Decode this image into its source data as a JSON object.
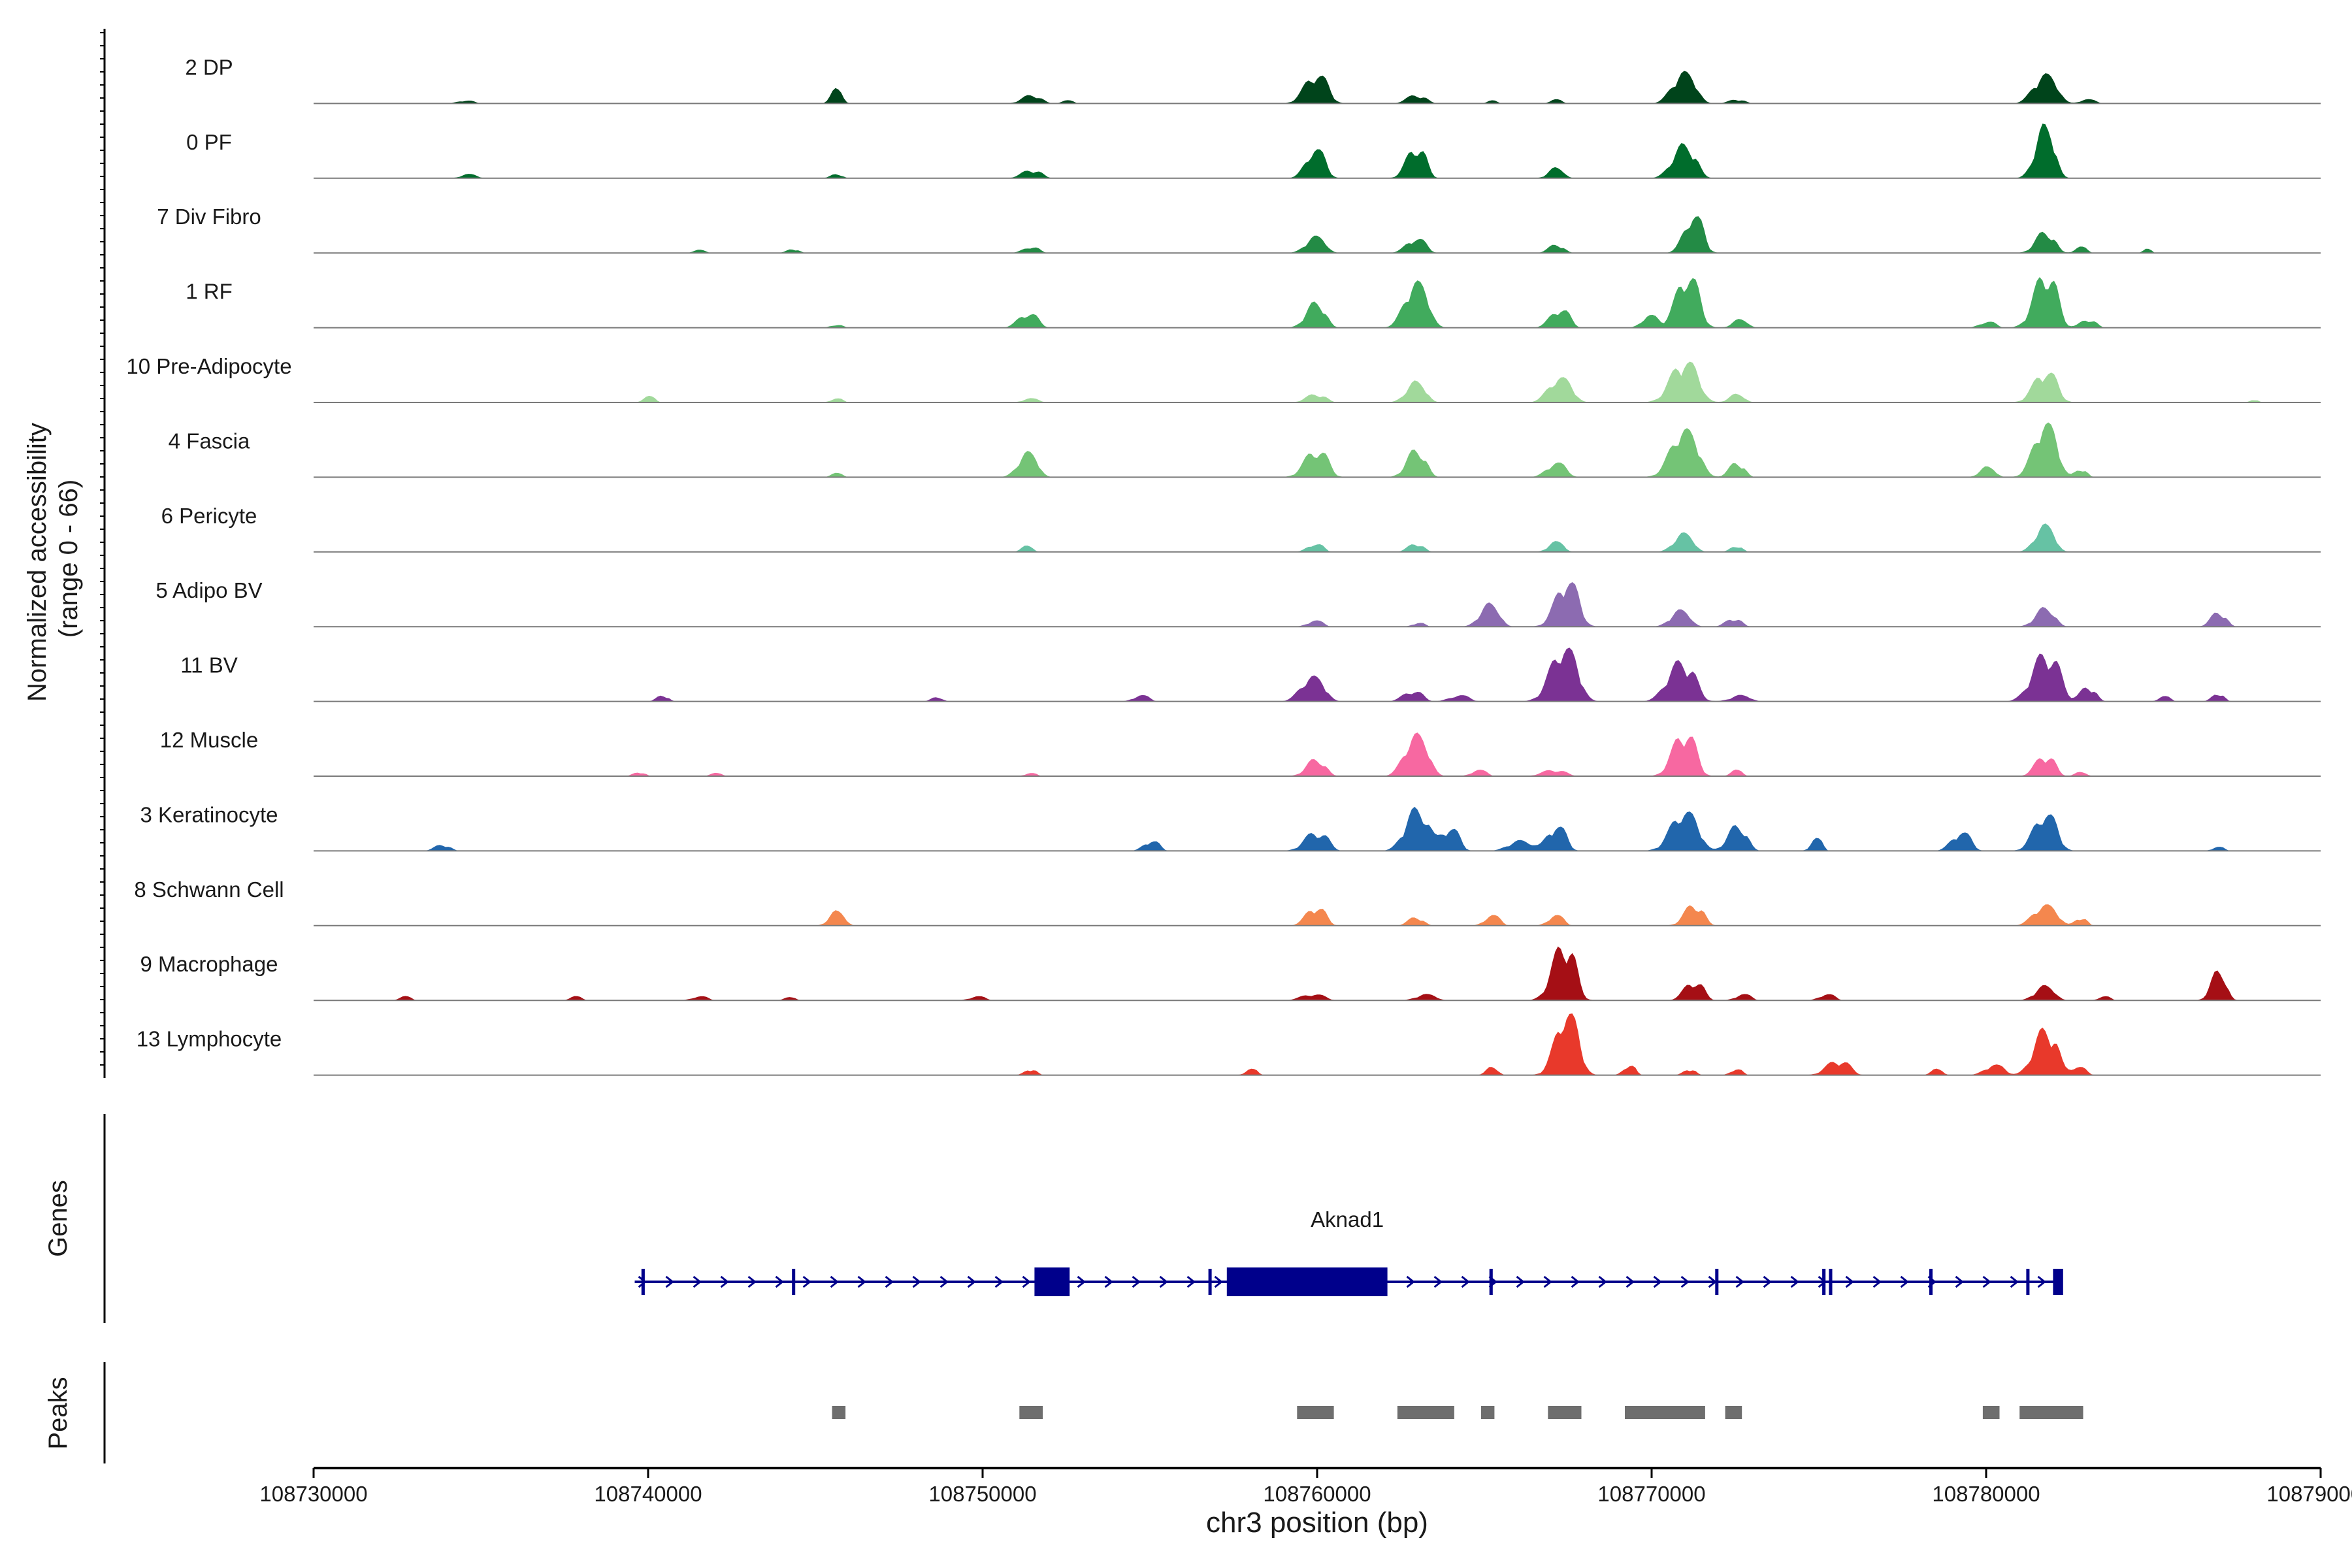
{
  "chart_data": {
    "type": "area",
    "title": "",
    "y_axis_label_line1": "Normalized accessibility",
    "y_axis_label_line2": "(range 0 - 66)",
    "y_range": [
      0,
      66
    ],
    "xlabel": "chr3 position (bp)",
    "xlim": [
      108730000,
      108790000
    ],
    "x_ticks": [
      "108730000",
      "108740000",
      "108750000",
      "108760000",
      "108770000",
      "108780000",
      "108790000"
    ],
    "tracks": [
      {
        "name": "2 DP",
        "color": "#00441b",
        "peaks": [
          [
            108734500,
            3,
            200
          ],
          [
            108745600,
            14,
            150
          ],
          [
            108751400,
            8,
            250
          ],
          [
            108752500,
            3,
            150
          ],
          [
            108759900,
            28,
            300
          ],
          [
            108762900,
            8,
            250
          ],
          [
            108765200,
            3,
            120
          ],
          [
            108767100,
            4,
            150
          ],
          [
            108770900,
            30,
            300
          ],
          [
            108772500,
            4,
            200
          ],
          [
            108781700,
            28,
            300
          ],
          [
            108783000,
            4,
            200
          ]
        ]
      },
      {
        "name": "0 PF",
        "color": "#006d2c",
        "peaks": [
          [
            108734600,
            4,
            200
          ],
          [
            108745600,
            4,
            150
          ],
          [
            108751400,
            8,
            250
          ],
          [
            108759900,
            28,
            250
          ],
          [
            108762900,
            30,
            250
          ],
          [
            108767100,
            10,
            200
          ],
          [
            108770900,
            32,
            300
          ],
          [
            108781700,
            50,
            250
          ]
        ]
      },
      {
        "name": "7 Div Fibro",
        "color": "#238b45",
        "peaks": [
          [
            108741500,
            3,
            150
          ],
          [
            108744300,
            4,
            150
          ],
          [
            108751400,
            6,
            200
          ],
          [
            108759900,
            16,
            250
          ],
          [
            108762900,
            14,
            250
          ],
          [
            108767100,
            8,
            200
          ],
          [
            108771200,
            36,
            250
          ],
          [
            108781700,
            20,
            250
          ],
          [
            108782800,
            6,
            150
          ],
          [
            108784800,
            4,
            100
          ]
        ]
      },
      {
        "name": "1 RF",
        "color": "#41ab5d",
        "peaks": [
          [
            108745600,
            3,
            150
          ],
          [
            108751300,
            14,
            250
          ],
          [
            108759900,
            24,
            250
          ],
          [
            108762900,
            44,
            300
          ],
          [
            108767200,
            18,
            250
          ],
          [
            108769900,
            12,
            200
          ],
          [
            108771000,
            50,
            300
          ],
          [
            108772600,
            8,
            200
          ],
          [
            108780000,
            6,
            200
          ],
          [
            108781700,
            52,
            300
          ],
          [
            108783000,
            8,
            200
          ]
        ]
      },
      {
        "name": "10 Pre-Adipocyte",
        "color": "#a1d99b",
        "peaks": [
          [
            108740000,
            6,
            150
          ],
          [
            108745600,
            4,
            150
          ],
          [
            108751400,
            4,
            200
          ],
          [
            108759900,
            8,
            250
          ],
          [
            108762900,
            20,
            250
          ],
          [
            108767200,
            24,
            300
          ],
          [
            108770900,
            40,
            350
          ],
          [
            108772500,
            8,
            200
          ],
          [
            108781700,
            30,
            300
          ],
          [
            108788000,
            3,
            100
          ]
        ]
      },
      {
        "name": "4 Fascia",
        "color": "#74c476",
        "peaks": [
          [
            108745600,
            4,
            150
          ],
          [
            108751300,
            24,
            250
          ],
          [
            108759900,
            26,
            300
          ],
          [
            108762900,
            26,
            250
          ],
          [
            108767100,
            14,
            250
          ],
          [
            108770900,
            46,
            350
          ],
          [
            108772500,
            14,
            200
          ],
          [
            108780000,
            10,
            200
          ],
          [
            108781700,
            52,
            300
          ],
          [
            108782800,
            8,
            150
          ]
        ]
      },
      {
        "name": "6 Pericyte",
        "color": "#66c2a4",
        "peaks": [
          [
            108751300,
            6,
            150
          ],
          [
            108759900,
            8,
            200
          ],
          [
            108762900,
            8,
            200
          ],
          [
            108767100,
            10,
            200
          ],
          [
            108770900,
            18,
            250
          ],
          [
            108772500,
            6,
            150
          ],
          [
            108781700,
            26,
            250
          ]
        ]
      },
      {
        "name": "5 Adipo BV",
        "color": "#8c6bb1",
        "peaks": [
          [
            108759900,
            6,
            200
          ],
          [
            108763000,
            4,
            150
          ],
          [
            108765100,
            22,
            250
          ],
          [
            108767400,
            44,
            300
          ],
          [
            108770800,
            16,
            250
          ],
          [
            108772400,
            8,
            200
          ],
          [
            108781700,
            18,
            250
          ],
          [
            108786900,
            14,
            200
          ]
        ]
      },
      {
        "name": "11 BV",
        "color": "#7b3294",
        "peaks": [
          [
            108740400,
            6,
            150
          ],
          [
            108748600,
            4,
            150
          ],
          [
            108754700,
            6,
            200
          ],
          [
            108759800,
            24,
            300
          ],
          [
            108762800,
            10,
            250
          ],
          [
            108764200,
            6,
            250
          ],
          [
            108767300,
            52,
            350
          ],
          [
            108770800,
            38,
            350
          ],
          [
            108772600,
            6,
            250
          ],
          [
            108781700,
            46,
            350
          ],
          [
            108783000,
            14,
            200
          ],
          [
            108785300,
            5,
            150
          ],
          [
            108786900,
            8,
            150
          ]
        ]
      },
      {
        "name": "12 Muscle",
        "color": "#f768a1",
        "peaks": [
          [
            108739700,
            4,
            150
          ],
          [
            108742000,
            3,
            150
          ],
          [
            108751400,
            3,
            150
          ],
          [
            108759900,
            16,
            250
          ],
          [
            108762900,
            40,
            300
          ],
          [
            108764800,
            6,
            200
          ],
          [
            108767000,
            6,
            300
          ],
          [
            108770900,
            42,
            300
          ],
          [
            108772500,
            6,
            150
          ],
          [
            108781700,
            20,
            250
          ],
          [
            108782800,
            4,
            150
          ]
        ]
      },
      {
        "name": "3 Keratinocyte",
        "color": "#2166ac",
        "peaks": [
          [
            108733800,
            6,
            200
          ],
          [
            108755000,
            10,
            200
          ],
          [
            108759900,
            18,
            300
          ],
          [
            108762900,
            40,
            300
          ],
          [
            108763900,
            22,
            250
          ],
          [
            108766000,
            10,
            300
          ],
          [
            108767100,
            24,
            250
          ],
          [
            108770900,
            38,
            350
          ],
          [
            108772500,
            24,
            250
          ],
          [
            108774900,
            12,
            150
          ],
          [
            108779200,
            18,
            250
          ],
          [
            108781700,
            36,
            300
          ],
          [
            108786900,
            4,
            150
          ]
        ]
      },
      {
        "name": "8 Schwann Cell",
        "color": "#f4874e",
        "peaks": [
          [
            108745600,
            14,
            200
          ],
          [
            108759900,
            18,
            250
          ],
          [
            108762900,
            8,
            200
          ],
          [
            108765200,
            10,
            200
          ],
          [
            108767100,
            10,
            200
          ],
          [
            108771200,
            20,
            250
          ],
          [
            108781700,
            20,
            300
          ],
          [
            108782800,
            8,
            150
          ]
        ]
      },
      {
        "name": "9 Macrophage",
        "color": "#a50f15",
        "peaks": [
          [
            108732700,
            4,
            150
          ],
          [
            108737800,
            4,
            150
          ],
          [
            108741500,
            4,
            200
          ],
          [
            108744200,
            3,
            150
          ],
          [
            108749800,
            4,
            200
          ],
          [
            108759800,
            6,
            300
          ],
          [
            108763200,
            6,
            250
          ],
          [
            108767300,
            54,
            300
          ],
          [
            108771200,
            18,
            250
          ],
          [
            108772700,
            6,
            200
          ],
          [
            108775200,
            6,
            200
          ],
          [
            108781700,
            14,
            250
          ],
          [
            108783500,
            4,
            150
          ],
          [
            108786900,
            28,
            200
          ]
        ]
      },
      {
        "name": "13 Lymphocyte",
        "color": "#e8392b",
        "peaks": [
          [
            108751400,
            6,
            150
          ],
          [
            108758000,
            6,
            150
          ],
          [
            108765200,
            8,
            150
          ],
          [
            108767400,
            60,
            300
          ],
          [
            108769300,
            10,
            150
          ],
          [
            108771100,
            6,
            150
          ],
          [
            108772500,
            6,
            150
          ],
          [
            108775500,
            14,
            300
          ],
          [
            108778500,
            6,
            150
          ],
          [
            108780200,
            10,
            250
          ],
          [
            108781700,
            44,
            300
          ],
          [
            108782700,
            8,
            200
          ]
        ]
      }
    ],
    "genes_label": "Genes",
    "gene": {
      "name": "Aknad1",
      "color": "#00008b",
      "start": 108739600,
      "end": 108782200,
      "exons": [
        [
          108739800,
          108739900
        ],
        [
          108744300,
          108744350
        ],
        [
          108751550,
          108752600
        ],
        [
          108756750,
          108756800
        ],
        [
          108757300,
          108762100
        ],
        [
          108765150,
          108765250
        ],
        [
          108771900,
          108771950
        ],
        [
          108775100,
          108775200
        ],
        [
          108775300,
          108775400
        ],
        [
          108778300,
          108778350
        ],
        [
          108781200,
          108781250
        ],
        [
          108782000,
          108782300
        ]
      ]
    },
    "peaks_label": "Peaks",
    "peak_regions": [
      [
        108745500,
        108745900
      ],
      [
        108751100,
        108751800
      ],
      [
        108759400,
        108760500
      ],
      [
        108762400,
        108764100
      ],
      [
        108764900,
        108765300
      ],
      [
        108766900,
        108767900
      ],
      [
        108769200,
        108771600
      ],
      [
        108772200,
        108772700
      ],
      [
        108779900,
        108780400
      ],
      [
        108781000,
        108782900
      ]
    ]
  }
}
